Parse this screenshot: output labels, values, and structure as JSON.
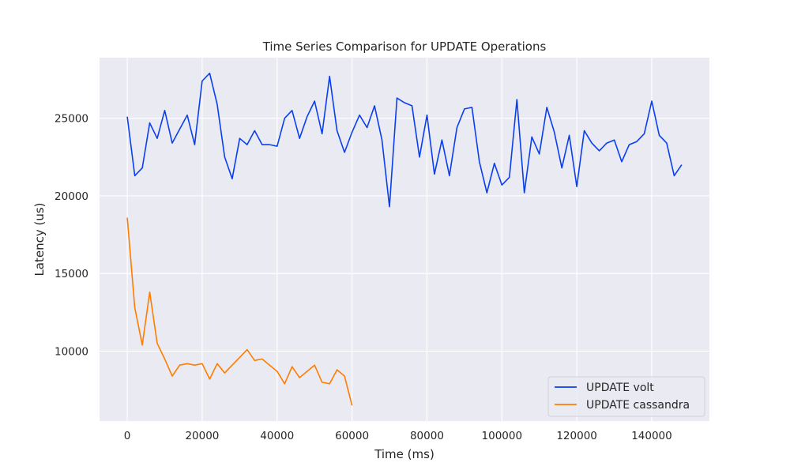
{
  "chart_data": {
    "type": "line",
    "title": "Time Series Comparison for UPDATE Operations",
    "xlabel": "Time (ms)",
    "ylabel": "Latency (us)",
    "xlim": [
      -7400,
      155400
    ],
    "ylim": [
      5500,
      28900
    ],
    "xticks": [
      0,
      20000,
      40000,
      60000,
      80000,
      100000,
      120000,
      140000
    ],
    "yticks": [
      10000,
      15000,
      20000,
      25000
    ],
    "grid": true,
    "legend_position": "lower-right",
    "series": [
      {
        "name": "UPDATE volt",
        "color": "#0a3ff0",
        "x": [
          0,
          2000,
          4000,
          6000,
          8000,
          10000,
          12000,
          14000,
          16000,
          18000,
          20000,
          22000,
          24000,
          26000,
          28000,
          30000,
          32000,
          34000,
          36000,
          38000,
          40000,
          42000,
          44000,
          46000,
          48000,
          50000,
          52000,
          54000,
          56000,
          58000,
          60000,
          62000,
          64000,
          66000,
          68000,
          70000,
          72000,
          74000,
          76000,
          78000,
          80000,
          82000,
          84000,
          86000,
          88000,
          90000,
          92000,
          94000,
          96000,
          98000,
          100000,
          102000,
          104000,
          106000,
          108000,
          110000,
          112000,
          114000,
          116000,
          118000,
          120000,
          122000,
          124000,
          126000,
          128000,
          130000,
          132000,
          134000,
          136000,
          138000,
          140000,
          142000,
          144000,
          146000,
          148000
        ],
        "y": [
          25100,
          21300,
          21800,
          24700,
          23700,
          25500,
          23400,
          24300,
          25200,
          23300,
          27400,
          27900,
          25900,
          22500,
          21100,
          23700,
          23300,
          24200,
          23300,
          23300,
          23200,
          25000,
          25500,
          23700,
          25100,
          26100,
          24000,
          27700,
          24200,
          22800,
          24100,
          25200,
          24400,
          25800,
          23600,
          19300,
          26300,
          26000,
          25800,
          22500,
          25200,
          21400,
          23600,
          21300,
          24400,
          25600,
          25700,
          22200,
          20200,
          22100,
          20700,
          21200,
          26200,
          20200,
          23800,
          22700,
          25700,
          24100,
          21800,
          23900,
          20600,
          24200,
          23400,
          22900,
          23400,
          23600,
          22200,
          23300,
          23500,
          24000,
          26100,
          23900,
          23400,
          21300,
          22000
        ]
      },
      {
        "name": "UPDATE cassandra",
        "color": "#ff7c00",
        "x": [
          0,
          2000,
          4000,
          6000,
          8000,
          10000,
          12000,
          14000,
          16000,
          18000,
          20000,
          22000,
          24000,
          26000,
          28000,
          30000,
          32000,
          34000,
          36000,
          38000,
          40000,
          42000,
          44000,
          46000,
          48000,
          50000,
          52000,
          54000,
          56000,
          58000,
          60000
        ],
        "y": [
          18600,
          12800,
          10400,
          13800,
          10500,
          9500,
          8400,
          9100,
          9200,
          9100,
          9200,
          8200,
          9200,
          8600,
          9100,
          9600,
          10100,
          9400,
          9500,
          9100,
          8700,
          7900,
          9000,
          8300,
          8700,
          9100,
          8000,
          7900,
          8800,
          8400,
          6500
        ]
      }
    ]
  }
}
